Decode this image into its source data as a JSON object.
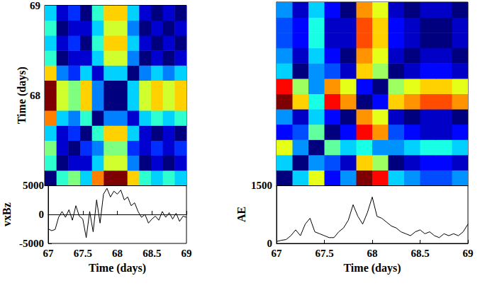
{
  "chart_data": [
    {
      "type": "heatmap",
      "ylabel": "Time (days)",
      "xlim": [
        67,
        69
      ],
      "ylim": [
        67,
        69
      ],
      "yticks": [
        68,
        69
      ],
      "tick_labels": "y",
      "zlim": [
        0,
        1
      ],
      "cells": [
        [
          0,
          0.42,
          0.5,
          0.33,
          0.75,
          1,
          1,
          0.67,
          0.42,
          0.33,
          0.42,
          0.33
        ],
        [
          0.42,
          0,
          0.08,
          0.08,
          0.33,
          0.58,
          0.58,
          0.25,
          0,
          0.08,
          0,
          0.08
        ],
        [
          0.5,
          0.08,
          0,
          0.17,
          0.25,
          0.5,
          0.5,
          0.17,
          0.08,
          0.17,
          0.08,
          0.17
        ],
        [
          0.33,
          0.08,
          0.17,
          0,
          0.42,
          0.67,
          0.67,
          0.33,
          0.08,
          0,
          0.08,
          0
        ],
        [
          0.75,
          0.33,
          0.25,
          0.42,
          0,
          0.25,
          0.25,
          0.08,
          0.33,
          0.42,
          0.33,
          0.42
        ],
        [
          1,
          0.58,
          0.5,
          0.67,
          0.25,
          0,
          0,
          0.33,
          0.58,
          0.67,
          0.58,
          0.67
        ],
        [
          1,
          0.58,
          0.5,
          0.67,
          0.25,
          0,
          0,
          0.33,
          0.58,
          0.67,
          0.58,
          0.67
        ],
        [
          0.67,
          0.25,
          0.17,
          0.33,
          0.08,
          0.33,
          0.33,
          0,
          0.25,
          0.33,
          0.25,
          0.33
        ],
        [
          0.42,
          0,
          0.08,
          0.08,
          0.33,
          0.58,
          0.58,
          0.25,
          0,
          0.08,
          0,
          0.08
        ],
        [
          0.33,
          0.08,
          0.17,
          0,
          0.42,
          0.67,
          0.67,
          0.33,
          0.08,
          0,
          0.08,
          0
        ],
        [
          0.42,
          0,
          0.08,
          0.08,
          0.33,
          0.58,
          0.58,
          0.25,
          0,
          0.08,
          0,
          0.08
        ],
        [
          0.33,
          0.08,
          0.17,
          0,
          0.42,
          0.67,
          0.67,
          0.33,
          0.08,
          0,
          0.08,
          0
        ]
      ]
    },
    {
      "type": "line",
      "xlabel": "Time (days)",
      "ylabel": "vxBz",
      "color": "#000000",
      "xlim": [
        67,
        69
      ],
      "xticks": [
        67,
        67.5,
        68,
        68.5,
        69
      ],
      "ylim": [
        -5000,
        5000
      ],
      "yticks": [
        -5000,
        0,
        5000
      ],
      "x": [
        67,
        67.05,
        67.1,
        67.15,
        67.2,
        67.25,
        67.3,
        67.35,
        67.4,
        67.45,
        67.5,
        67.55,
        67.6,
        67.65,
        67.7,
        67.75,
        67.8,
        67.85,
        67.9,
        67.95,
        68,
        68.05,
        68.1,
        68.15,
        68.2,
        68.25,
        68.3,
        68.35,
        68.4,
        68.45,
        68.5,
        68.55,
        68.6,
        68.65,
        68.7,
        68.75,
        68.8,
        68.85,
        68.9,
        68.95,
        69
      ],
      "values": [
        -2500,
        -2800,
        -2600,
        -500,
        500,
        -500,
        800,
        -1000,
        1500,
        -300,
        -800,
        -4000,
        500,
        -3000,
        2500,
        -1500,
        3500,
        4500,
        3000,
        4000,
        3500,
        4200,
        2500,
        3000,
        1500,
        2000,
        500,
        -500,
        0,
        -1500,
        -800,
        -300,
        -1000,
        500,
        -500,
        300,
        -800,
        200,
        -1200,
        -300,
        -500
      ]
    },
    {
      "type": "heatmap",
      "xlim": [
        67,
        69
      ],
      "ylim": [
        67,
        69
      ],
      "tick_labels": false,
      "zlim": [
        0,
        1
      ],
      "cells": [
        [
          0,
          0.33,
          0.6,
          0.13,
          0.27,
          1,
          0.87,
          0.33,
          0.27,
          0.2,
          0.2,
          0.27
        ],
        [
          0.33,
          0,
          0.27,
          0.2,
          0.07,
          0.67,
          0.53,
          0,
          0.07,
          0.13,
          0.13,
          0.07
        ],
        [
          0.6,
          0.27,
          0,
          0.47,
          0.33,
          0.4,
          0.27,
          0.27,
          0.33,
          0.4,
          0.4,
          0.33
        ],
        [
          0.13,
          0.2,
          0.47,
          0,
          0.13,
          0.87,
          0.73,
          0.2,
          0.13,
          0.07,
          0.07,
          0.13
        ],
        [
          0.27,
          0.07,
          0.33,
          0.13,
          0,
          0.73,
          0.6,
          0.07,
          0,
          0.07,
          0.07,
          0
        ],
        [
          1,
          0.67,
          0.4,
          0.87,
          0.73,
          0,
          0.13,
          0.67,
          0.73,
          0.8,
          0.8,
          0.73
        ],
        [
          0.87,
          0.53,
          0.27,
          0.73,
          0.6,
          0.13,
          0,
          0.53,
          0.6,
          0.67,
          0.67,
          0.6
        ],
        [
          0.33,
          0,
          0.27,
          0.2,
          0.07,
          0.67,
          0.53,
          0,
          0.07,
          0.13,
          0.13,
          0.07
        ],
        [
          0.27,
          0.07,
          0.33,
          0.13,
          0,
          0.73,
          0.6,
          0.07,
          0,
          0.07,
          0.07,
          0
        ],
        [
          0.2,
          0.13,
          0.4,
          0.07,
          0.07,
          0.8,
          0.67,
          0.13,
          0.07,
          0,
          0,
          0.07
        ],
        [
          0.2,
          0.13,
          0.4,
          0.07,
          0.07,
          0.8,
          0.67,
          0.13,
          0.07,
          0,
          0,
          0.07
        ],
        [
          0.27,
          0.07,
          0.33,
          0.13,
          0,
          0.73,
          0.6,
          0.07,
          0,
          0.07,
          0.07,
          0
        ]
      ]
    },
    {
      "type": "line",
      "xlabel": "Time (days)",
      "ylabel": "AE",
      "color": "#000000",
      "xlim": [
        67,
        69
      ],
      "xticks": [
        67,
        67.5,
        68,
        68.5,
        69
      ],
      "ylim": [
        0,
        1500
      ],
      "yticks": [
        0,
        1500
      ],
      "x": [
        67,
        67.05,
        67.1,
        67.15,
        67.2,
        67.25,
        67.3,
        67.35,
        67.4,
        67.45,
        67.5,
        67.55,
        67.6,
        67.65,
        67.7,
        67.75,
        67.8,
        67.85,
        67.9,
        67.95,
        68,
        68.05,
        68.1,
        68.15,
        68.2,
        68.25,
        68.3,
        68.35,
        68.4,
        68.45,
        68.5,
        68.55,
        68.6,
        68.65,
        68.7,
        68.75,
        68.8,
        68.85,
        68.9,
        68.95,
        69
      ],
      "values": [
        50,
        80,
        100,
        200,
        350,
        200,
        500,
        650,
        300,
        250,
        200,
        150,
        150,
        300,
        400,
        600,
        1000,
        700,
        500,
        800,
        1200,
        700,
        650,
        550,
        450,
        400,
        300,
        250,
        200,
        300,
        350,
        250,
        300,
        200,
        150,
        250,
        200,
        250,
        200,
        300,
        500
      ]
    }
  ]
}
